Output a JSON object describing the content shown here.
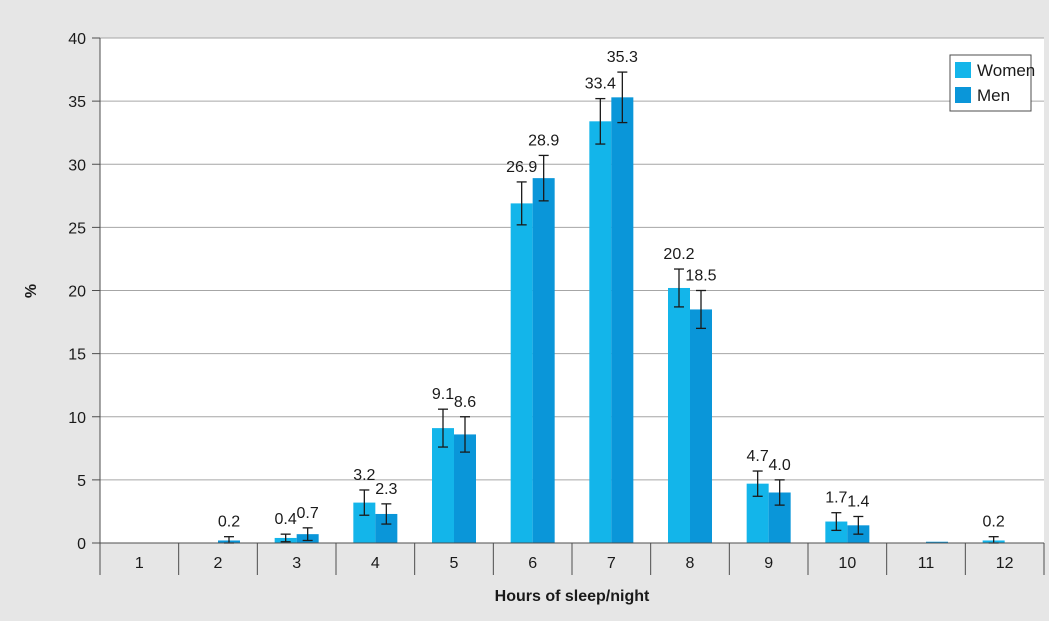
{
  "chart_data": {
    "type": "bar",
    "title": "",
    "xlabel": "Hours of sleep/night",
    "ylabel": "%",
    "ylim": [
      0,
      40
    ],
    "yticks": [
      0,
      5,
      10,
      15,
      20,
      25,
      30,
      35,
      40
    ],
    "grid": true,
    "legend_position": "top-right",
    "categories": [
      "1",
      "2",
      "3",
      "4",
      "5",
      "6",
      "7",
      "8",
      "9",
      "10",
      "11",
      "12"
    ],
    "series": [
      {
        "name": "Women",
        "color": "#13b5ea",
        "values": [
          0,
          0,
          0.4,
          3.2,
          9.1,
          26.9,
          33.4,
          20.2,
          4.7,
          1.7,
          0,
          0.2
        ],
        "labels": [
          "",
          "",
          "0.4",
          "3.2",
          "9.1",
          "26.9",
          "33.4",
          "20.2",
          "4.7",
          "1.7",
          "",
          "0.2"
        ],
        "error": [
          0,
          0,
          0.3,
          1.0,
          1.5,
          1.7,
          1.8,
          1.5,
          1.0,
          0.7,
          0,
          0.3
        ]
      },
      {
        "name": "Men",
        "color": "#0a96d9",
        "values": [
          0,
          0.2,
          0.7,
          2.3,
          8.6,
          28.9,
          35.3,
          18.5,
          4.0,
          1.4,
          0.1,
          0
        ],
        "labels": [
          "",
          "0.2",
          "0.7",
          "2.3",
          "8.6",
          "28.9",
          "35.3",
          "18.5",
          "4.0",
          "1.4",
          "",
          ""
        ],
        "error": [
          0,
          0.3,
          0.5,
          0.8,
          1.4,
          1.8,
          2.0,
          1.5,
          1.0,
          0.7,
          0,
          0
        ]
      }
    ]
  }
}
